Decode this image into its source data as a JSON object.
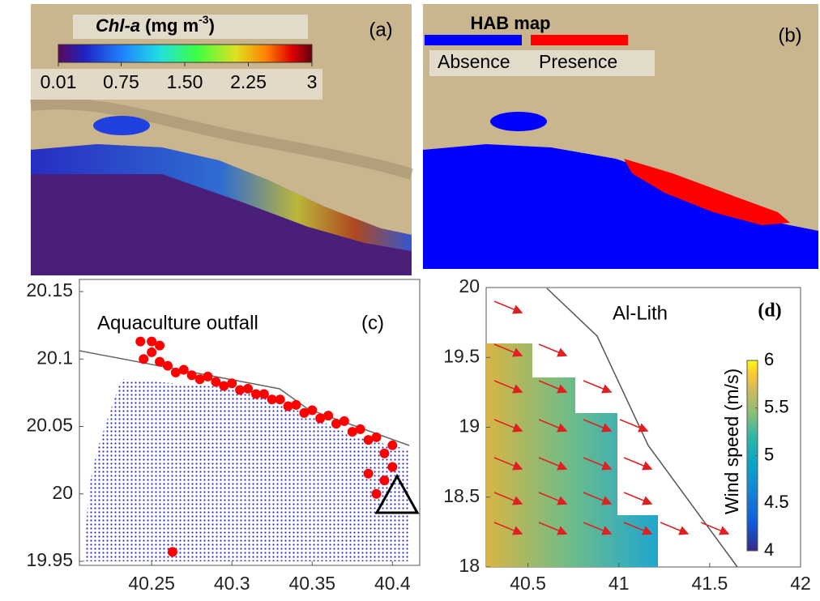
{
  "images": [
    {
      "panel_label": "(a)",
      "colorbar": {
        "title_italic": "Chl-a",
        "title_unit": "(mg m",
        "title_exp": "-3",
        "title_close": ")",
        "clim": [
          0.01,
          3
        ],
        "ticks": [
          0.01,
          0.75,
          {
            "value": 1.5,
            "label": "1.50"
          },
          2.25,
          3
        ]
      }
    },
    {
      "panel_label": "(b)",
      "legend": {
        "title": "HAB map",
        "items": [
          {
            "name": "Absence",
            "color": "#0000ff"
          },
          {
            "name": "Presence",
            "color": "#ff0000"
          }
        ]
      }
    }
  ],
  "chart_data": [
    {
      "type": "scatter",
      "annotation": "Aquaculture outfall",
      "panel_label": "(c)",
      "xlim": [
        40.205,
        40.417
      ],
      "ylim": [
        19.947,
        20.159
      ],
      "xticks": [
        40.25,
        40.3,
        40.35,
        40.4
      ],
      "yticks": [
        20.15,
        20.1,
        20.05,
        20,
        19.95
      ],
      "series": [
        {
          "color": "#ff0000",
          "x": [
            40.243,
            40.245,
            40.25,
            40.25,
            40.255,
            40.255,
            40.26,
            40.265,
            40.27,
            40.275,
            40.28,
            40.285,
            40.29,
            40.295,
            40.3,
            40.305,
            40.31,
            40.315,
            40.32,
            40.325,
            40.33,
            40.335,
            40.34,
            40.345,
            40.35,
            40.355,
            40.36,
            40.365,
            40.37,
            40.375,
            40.38,
            40.385,
            40.39,
            40.395,
            40.4,
            40.4,
            40.395,
            40.39,
            40.385,
            40.263
          ],
          "y": [
            20.113,
            20.1,
            20.113,
            20.105,
            20.11,
            20.098,
            20.095,
            20.09,
            20.092,
            20.088,
            20.085,
            20.087,
            20.083,
            20.08,
            20.082,
            20.077,
            20.078,
            20.074,
            20.074,
            20.07,
            20.07,
            20.065,
            20.066,
            20.06,
            20.062,
            20.056,
            20.058,
            20.052,
            20.054,
            20.046,
            20.048,
            20.04,
            20.042,
            20.03,
            20.036,
            20.02,
            20.01,
            20.0,
            20.015,
            19.957
          ]
        }
      ]
    },
    {
      "type": "heatmap",
      "annotation": "Al-Lith",
      "panel_label": "(d)",
      "xlim": [
        40.27,
        42
      ],
      "ylim": [
        18,
        20
      ],
      "xticks": [
        40.5,
        41,
        41.5,
        42
      ],
      "yticks": [
        20,
        19.5,
        19,
        18.5,
        18
      ],
      "colorbar": {
        "label": "Wind speed (m/s)",
        "clim": [
          4,
          6
        ],
        "ticks": [
          6,
          5.5,
          5,
          4.5,
          4
        ]
      }
    }
  ]
}
